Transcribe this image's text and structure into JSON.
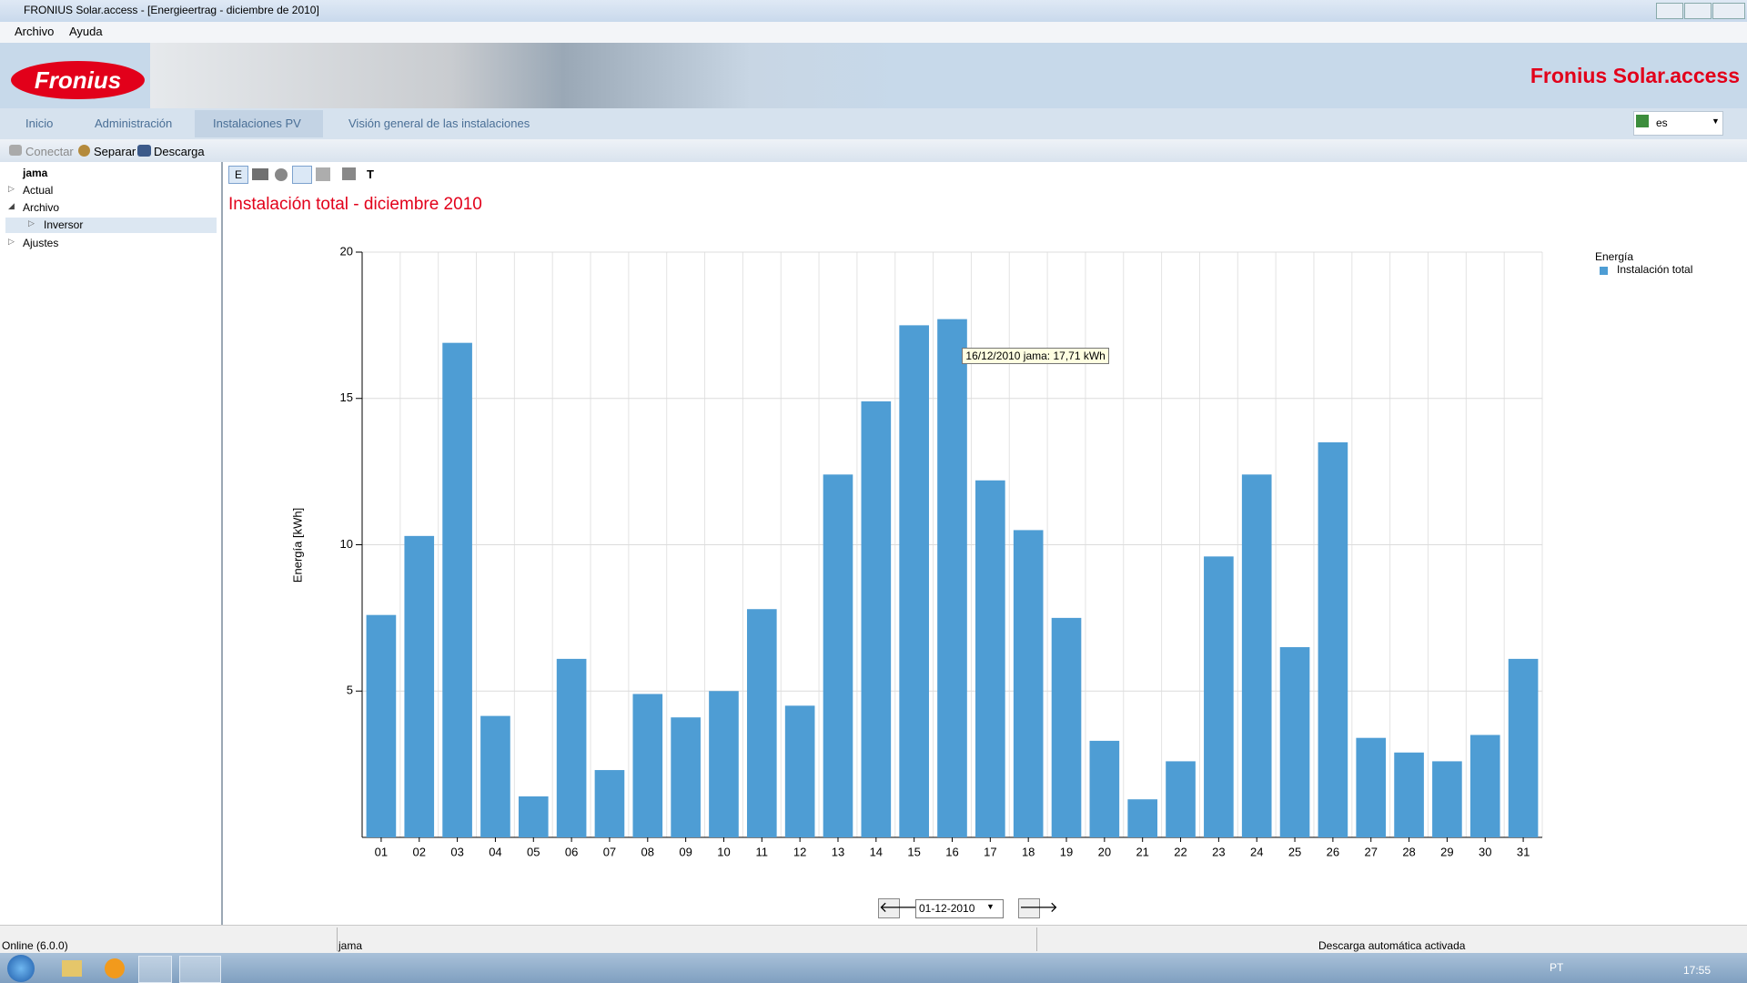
{
  "window": {
    "title": "FRONIUS Solar.access - [Energieertrag - diciembre de 2010]"
  },
  "menu": [
    "Archivo",
    "Ayuda"
  ],
  "banner": {
    "logo": "Fronius",
    "product": "Fronius Solar.access"
  },
  "tabs": [
    "Inicio",
    "Administración",
    "Instalaciones PV",
    "Visión general de las instalaciones"
  ],
  "language": "es",
  "toolbar": [
    "Conectar",
    "Separar",
    "Descarga"
  ],
  "chart_toolbar": [
    "E",
    "T"
  ],
  "tree": {
    "root": "jama",
    "items": [
      "Actual",
      "Archivo",
      "Inversor",
      "Ajustes"
    ]
  },
  "chart_data": {
    "type": "bar",
    "title": "Instalación total - diciembre 2010",
    "y_label": "Energía [kWh]",
    "legend_title": "Energía",
    "categories": [
      "01",
      "02",
      "03",
      "04",
      "05",
      "06",
      "07",
      "08",
      "09",
      "10",
      "11",
      "12",
      "13",
      "14",
      "15",
      "16",
      "17",
      "18",
      "19",
      "20",
      "21",
      "22",
      "23",
      "24",
      "25",
      "26",
      "27",
      "28",
      "29",
      "30",
      "31"
    ],
    "series": [
      {
        "name": "Instalación total",
        "color": "#4e9dd4",
        "values": [
          7.6,
          10.3,
          16.9,
          4.15,
          1.4,
          6.1,
          2.3,
          4.9,
          4.1,
          5.0,
          7.8,
          4.5,
          12.4,
          14.9,
          17.5,
          17.71,
          12.2,
          10.5,
          7.5,
          3.3,
          1.3,
          2.6,
          9.6,
          12.4,
          6.5,
          13.5,
          3.4,
          2.9,
          2.6,
          3.5,
          6.1
        ]
      }
    ],
    "ylim": [
      0,
      20
    ],
    "yticks": [
      5,
      10,
      15,
      20
    ],
    "grid": true,
    "tooltip": "16/12/2010 jama: 17,71 kWh"
  },
  "date_picker": "01-12-2010",
  "status": [
    "Online (6.0.0)",
    "jama",
    "Descarga automática activada"
  ],
  "taskbar": {
    "language": "PT",
    "clock": "17:55"
  }
}
